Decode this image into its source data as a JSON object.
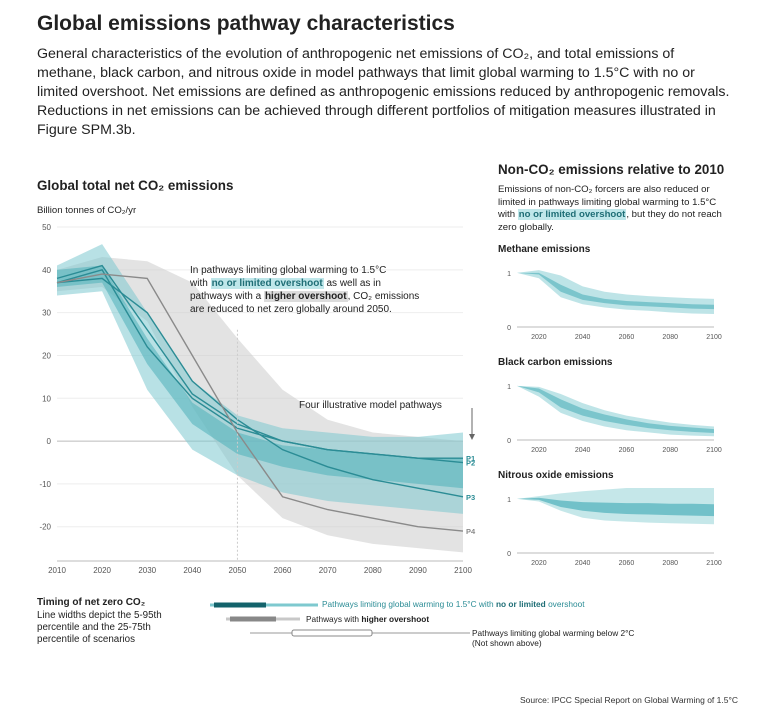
{
  "header": {
    "title": "Global emissions pathway characteristics",
    "intro": "General characteristics of the evolution of anthropogenic net emissions of CO₂, and total emissions of methane, black carbon, and nitrous oxide in model pathways that limit global warming to 1.5°C with no or limited overshoot. Net emissions are defined as anthropogenic emissions reduced by anthropogenic removals. Reductions in net emissions can be achieved through different portfolios of mitigation measures illustrated in Figure SPM.3b."
  },
  "main_chart": {
    "title": "Global total net CO₂ emissions",
    "ylabel": "Billion tonnes of CO₂/yr",
    "annotation": {
      "pre": "In pathways limiting global warming to 1.5°C",
      "with": "with",
      "hl1": "no or limited overshoot",
      "mid": "as well as in",
      "pre2": "pathways with a",
      "hl2": "higher overshoot",
      "post": ", CO₂ emissions",
      "end": "are reduced to net zero globally around 2050."
    },
    "pathways_label": "Four illustrative model pathways"
  },
  "chart_data": [
    {
      "type": "area",
      "title": "Global total net CO₂ emissions",
      "ylabel": "Billion tonnes of CO₂/yr",
      "xlim": [
        2010,
        2100
      ],
      "ylim": [
        -28,
        50
      ],
      "xticks": [
        2010,
        2020,
        2030,
        2040,
        2050,
        2060,
        2070,
        2080,
        2090,
        2100
      ],
      "yticks": [
        -20,
        -10,
        0,
        10,
        20,
        30,
        40,
        50
      ],
      "x": [
        2010,
        2020,
        2030,
        2040,
        2050,
        2060,
        2070,
        2080,
        2090,
        2100
      ],
      "bands": [
        {
          "name": "higher overshoot 5-95th",
          "color": "#c8c8c8",
          "opacity": 0.5,
          "lower": [
            35,
            36,
            28,
            8,
            -8,
            -18,
            -22,
            -24,
            -25,
            -26
          ],
          "upper": [
            40,
            43,
            42,
            37,
            24,
            12,
            5,
            2,
            1,
            0
          ]
        },
        {
          "name": "no or limited overshoot 5-95th",
          "color": "#7ec9cf",
          "opacity": 0.55,
          "lower": [
            34,
            35,
            12,
            -2,
            -8,
            -12,
            -14,
            -15,
            -16,
            -17
          ],
          "upper": [
            41,
            46,
            30,
            14,
            6,
            3,
            2,
            1,
            1,
            2
          ]
        },
        {
          "name": "no or limited overshoot 25-75th",
          "color": "#4fb1ba",
          "opacity": 0.55,
          "lower": [
            36,
            37,
            18,
            4,
            -3,
            -6,
            -8,
            -9,
            -10,
            -11
          ],
          "upper": [
            40,
            41,
            24,
            9,
            2,
            -1,
            -2,
            -3,
            -4,
            -4
          ]
        }
      ],
      "pathways": [
        {
          "name": "P1",
          "color": "#2b8c95",
          "values": [
            37,
            40,
            22,
            10,
            3,
            0,
            -2,
            -3,
            -4,
            -4
          ]
        },
        {
          "name": "P2",
          "color": "#2b8c95",
          "values": [
            38,
            41,
            26,
            11,
            4,
            0,
            -2,
            -3,
            -4,
            -5
          ]
        },
        {
          "name": "P3",
          "color": "#2b8c95",
          "values": [
            37,
            38,
            30,
            14,
            5,
            -2,
            -6,
            -9,
            -11,
            -13
          ]
        },
        {
          "name": "P4",
          "color": "#8a8a8a",
          "values": [
            37,
            39,
            38,
            20,
            2,
            -13,
            -16,
            -18,
            -20,
            -21
          ]
        }
      ]
    },
    {
      "type": "area",
      "title": "Methane emissions",
      "xlim": [
        2010,
        2100
      ],
      "ylim": [
        0,
        1.2
      ],
      "xticks": [
        2020,
        2040,
        2060,
        2080,
        2100
      ],
      "yticks": [
        0,
        1
      ],
      "x": [
        2010,
        2020,
        2030,
        2040,
        2050,
        2060,
        2070,
        2080,
        2090,
        2100
      ],
      "bands": [
        {
          "name": "5-95th",
          "color": "#7ec9cf",
          "opacity": 0.5,
          "lower": [
            1.0,
            0.9,
            0.55,
            0.42,
            0.36,
            0.32,
            0.3,
            0.27,
            0.25,
            0.24
          ],
          "upper": [
            1.0,
            1.05,
            0.95,
            0.75,
            0.65,
            0.6,
            0.57,
            0.55,
            0.53,
            0.52
          ]
        },
        {
          "name": "25-75th",
          "color": "#4fb1ba",
          "opacity": 0.6,
          "lower": [
            1.0,
            0.97,
            0.65,
            0.5,
            0.44,
            0.4,
            0.38,
            0.36,
            0.34,
            0.33
          ],
          "upper": [
            1.0,
            1.0,
            0.78,
            0.6,
            0.52,
            0.48,
            0.46,
            0.44,
            0.42,
            0.41
          ]
        }
      ]
    },
    {
      "type": "area",
      "title": "Black carbon emissions",
      "xlim": [
        2010,
        2100
      ],
      "ylim": [
        0,
        1.2
      ],
      "xticks": [
        2020,
        2040,
        2060,
        2080,
        2100
      ],
      "yticks": [
        0,
        1
      ],
      "x": [
        2010,
        2020,
        2030,
        2040,
        2050,
        2060,
        2070,
        2080,
        2090,
        2100
      ],
      "bands": [
        {
          "name": "5-95th",
          "color": "#7ec9cf",
          "opacity": 0.5,
          "lower": [
            1.0,
            0.8,
            0.5,
            0.35,
            0.25,
            0.18,
            0.14,
            0.1,
            0.08,
            0.07
          ],
          "upper": [
            1.0,
            0.98,
            0.85,
            0.68,
            0.55,
            0.45,
            0.38,
            0.32,
            0.28,
            0.25
          ]
        },
        {
          "name": "25-75th",
          "color": "#4fb1ba",
          "opacity": 0.6,
          "lower": [
            1.0,
            0.88,
            0.6,
            0.45,
            0.35,
            0.28,
            0.22,
            0.18,
            0.15,
            0.13
          ],
          "upper": [
            1.0,
            0.95,
            0.75,
            0.58,
            0.47,
            0.38,
            0.31,
            0.26,
            0.23,
            0.2
          ]
        }
      ]
    },
    {
      "type": "area",
      "title": "Nitrous oxide emissions",
      "xlim": [
        2010,
        2100
      ],
      "ylim": [
        0,
        1.2
      ],
      "xticks": [
        2020,
        2040,
        2060,
        2080,
        2100
      ],
      "yticks": [
        0,
        1
      ],
      "x": [
        2010,
        2020,
        2030,
        2040,
        2050,
        2060,
        2070,
        2080,
        2090,
        2100
      ],
      "bands": [
        {
          "name": "5-95th",
          "color": "#7ec9cf",
          "opacity": 0.45,
          "lower": [
            1.0,
            0.95,
            0.78,
            0.65,
            0.6,
            0.58,
            0.56,
            0.55,
            0.54,
            0.53
          ],
          "upper": [
            1.0,
            1.05,
            1.1,
            1.14,
            1.17,
            1.2,
            1.2,
            1.2,
            1.2,
            1.2
          ]
        },
        {
          "name": "25-75th",
          "color": "#4fb1ba",
          "opacity": 0.7,
          "lower": [
            1.0,
            0.98,
            0.85,
            0.78,
            0.74,
            0.72,
            0.71,
            0.7,
            0.69,
            0.68
          ],
          "upper": [
            1.0,
            1.02,
            0.97,
            0.94,
            0.93,
            0.92,
            0.92,
            0.91,
            0.91,
            0.9
          ]
        }
      ]
    }
  ],
  "non_co2": {
    "title": "Non-CO₂ emissions relative to 2010",
    "desc_pre": "Emissions of non-CO₂ forcers are also reduced or limited in pathways limiting global warming to 1.5°C with",
    "desc_hl": "no or limited overshoot",
    "desc_post": ", but they do not reach zero globally."
  },
  "timing": {
    "title": "Timing of net zero CO₂",
    "desc": "Line widths depict the 5-95th percentile and the 25-75th percentile of scenarios",
    "legend1_pre": "Pathways limiting global warming to 1.5°C with",
    "legend1_hl": "no or limited",
    "legend1_post": "overshoot",
    "legend2_pre": "Pathways with",
    "legend2_hl": "higher overshoot",
    "legend3": "Pathways limiting global warming below 2°C",
    "legend3_note": "(Not shown above)"
  },
  "source": "Source: IPCC Special Report on Global Warming of 1.5°C"
}
